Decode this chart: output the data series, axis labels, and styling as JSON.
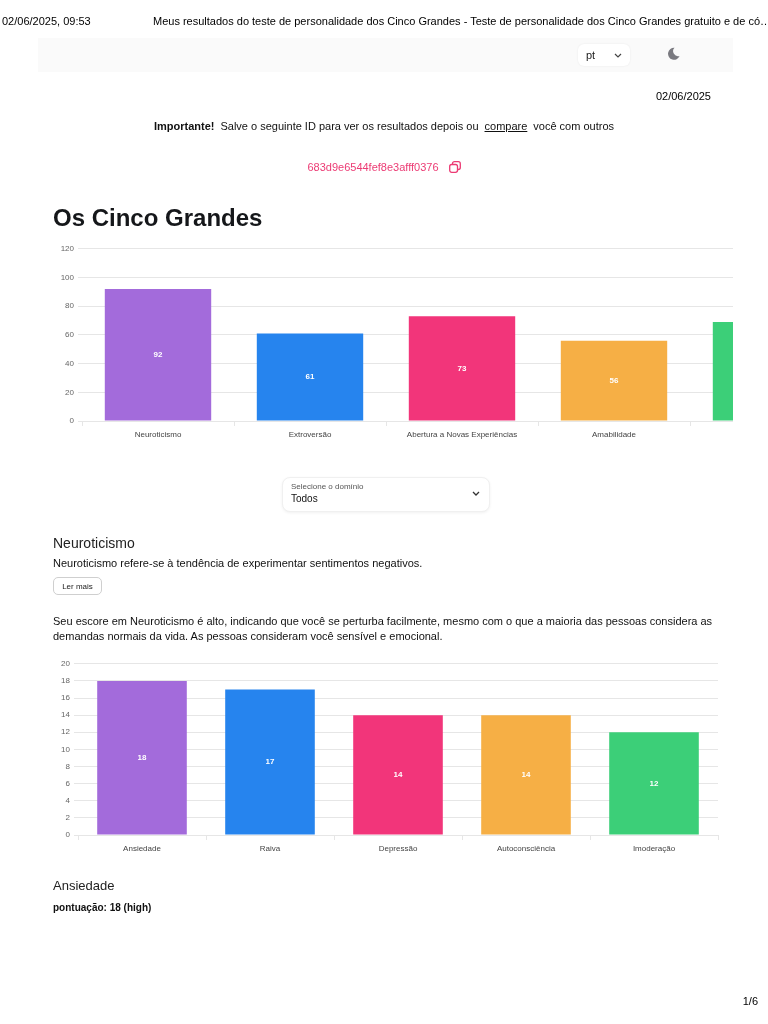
{
  "chart_data": [
    {
      "type": "bar",
      "title": "Os Cinco Grandes",
      "categories": [
        "Neuroticismo",
        "Extroversão",
        "Abertura a Novas Experiências",
        "Amabilidade",
        null
      ],
      "values": [
        92,
        61,
        73,
        56,
        69
      ],
      "colors": [
        "#a36bdb",
        "#2684ee",
        "#f2357a",
        "#f6af45",
        "#3ccf78"
      ],
      "value_labels": [
        "92",
        "61",
        "73",
        "56",
        null
      ],
      "ylim": [
        0,
        120
      ],
      "yticks": [
        0,
        20,
        40,
        60,
        80,
        100,
        120
      ],
      "grid": "y",
      "annotations": [
        "02/06/2025, 09:53",
        "Meus resultados do teste de personalidade dos Cinco Grandes - Teste de personalidade dos Cinco Grandes gratuito e de có…",
        "pt",
        "02/06/2025",
        "Importante!",
        "Salve o seguinte ID para ver os resultados depois ou",
        "compare",
        "você com outros",
        "683d9e6544fef8e3afff0376",
        "Selecione o domínio",
        "Todos"
      ]
    },
    {
      "type": "bar",
      "title": "Neuroticismo",
      "categories": [
        "Ansiedade",
        "Raiva",
        "Depressão",
        "Autoconsciência",
        "Imoderação"
      ],
      "values": [
        18,
        17,
        14,
        14,
        12
      ],
      "colors": [
        "#a36bdb",
        "#2684ee",
        "#f2357a",
        "#f6af45",
        "#3ccf78"
      ],
      "data_labels": true,
      "ylim": [
        0,
        20
      ],
      "yticks": [
        0,
        2,
        4,
        6,
        8,
        10,
        12,
        14,
        16,
        18,
        20
      ],
      "grid": "y",
      "annotations": [
        "Neuroticismo refere-se à tendência de experimentar sentimentos negativos.",
        "Ler mais",
        "Seu escore em Neuroticismo é alto, indicando que você se perturba facilmente, mesmo com o que a maioria das pessoas considera as demandas normais da vida. As pessoas consideram você sensível e emocional.",
        "Ansiedade",
        "pontuação: 18 (high)",
        "1/6"
      ]
    }
  ]
}
